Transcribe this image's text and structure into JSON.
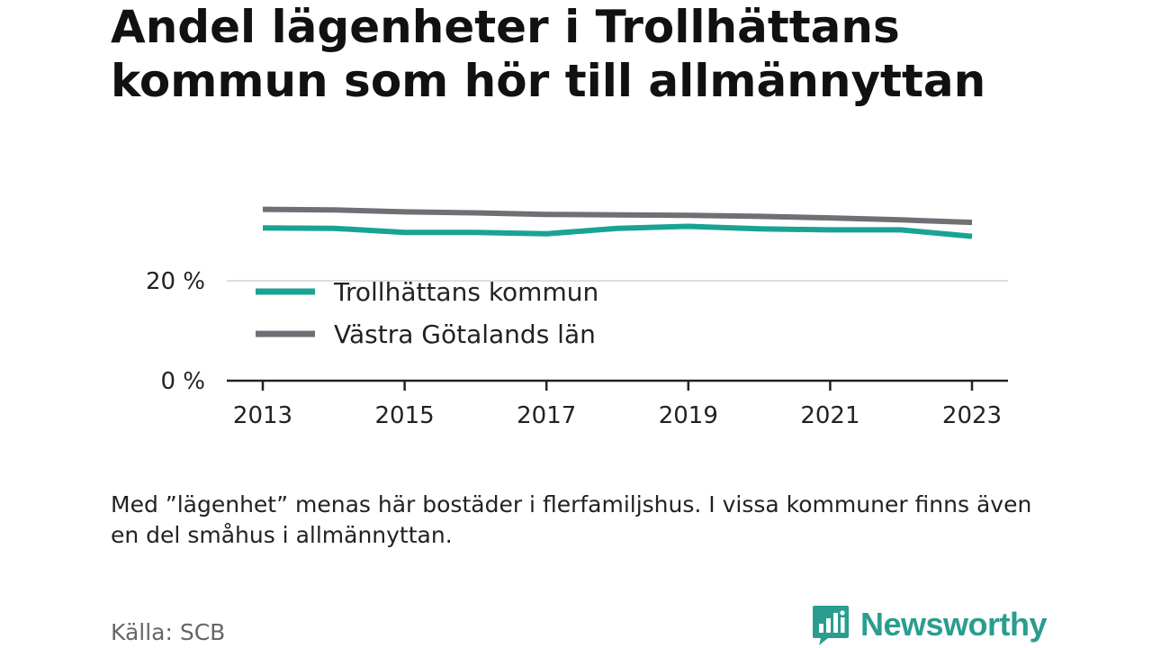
{
  "title": "Andel lägenheter i Trollhättans kommun som hör till allmännyttan",
  "note": "Med ”lägenhet” menas här bostäder i flerfamiljshus. I vissa kommuner finns även en del småhus i allmännyttan.",
  "source": "Källa: SCB",
  "brand": {
    "name": "Newsworthy",
    "logo_icon": "bar-chart-speech-bubble-icon",
    "color": "#2a9d8f"
  },
  "chart_data": {
    "type": "line",
    "x": [
      2013,
      2014,
      2015,
      2016,
      2017,
      2018,
      2019,
      2020,
      2021,
      2022,
      2023
    ],
    "x_ticks": [
      "2013",
      "2015",
      "2017",
      "2019",
      "2021",
      "2023"
    ],
    "y_ticks": [
      "0 %",
      "20 %"
    ],
    "y_tick_values": [
      0,
      20
    ],
    "ylim": [
      0,
      40
    ],
    "grid": true,
    "legend_position": "bottom-left",
    "series": [
      {
        "name": "Trollhättans kommun",
        "color": "#1aa393",
        "values": [
          30.6,
          30.5,
          29.7,
          29.7,
          29.4,
          30.5,
          30.9,
          30.4,
          30.2,
          30.2,
          28.9
        ]
      },
      {
        "name": "Västra Götalands län",
        "color": "#6f6f75",
        "values": [
          34.3,
          34.2,
          33.8,
          33.6,
          33.3,
          33.2,
          33.1,
          32.9,
          32.6,
          32.2,
          31.7
        ]
      }
    ]
  }
}
